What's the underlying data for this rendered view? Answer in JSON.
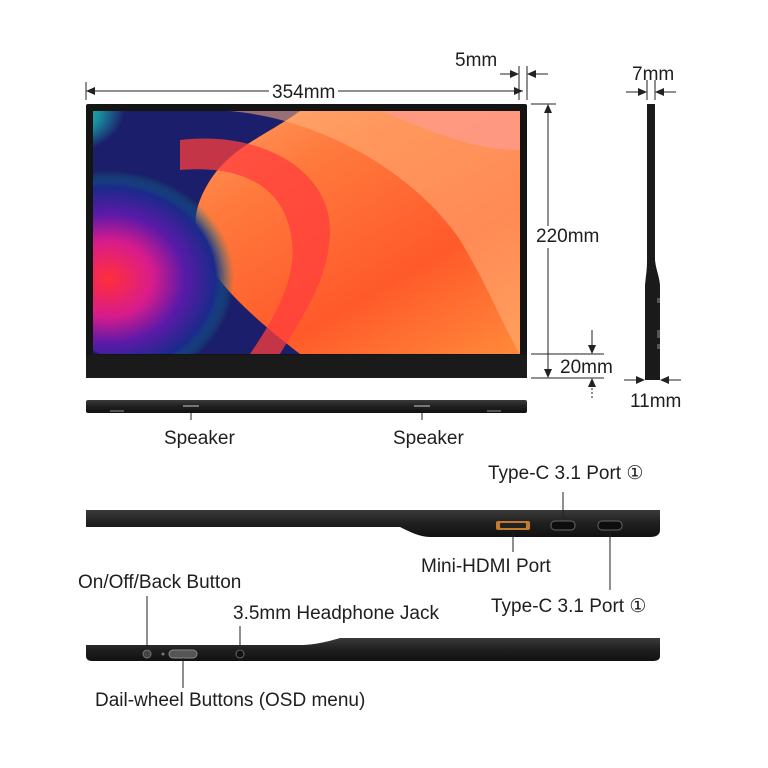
{
  "dimensions": {
    "width": "354mm",
    "height": "220mm",
    "bezel_side": "5mm",
    "bezel_bottom": "20mm",
    "thickness_top": "7mm",
    "thickness_bottom": "11mm"
  },
  "bottom_view": {
    "speaker_left": "Speaker",
    "speaker_right": "Speaker"
  },
  "right_side_view": {
    "type_c_top": "Type-C 3.1 Port ①",
    "mini_hdmi": "Mini-HDMI Port",
    "type_c_bottom": "Type-C 3.1 Port ①"
  },
  "left_side_view": {
    "power_button": "On/Off/Back Button",
    "headphone_jack": "3.5mm Headphone Jack",
    "dial_wheel": "Dail-wheel Buttons (OSD menu)"
  },
  "colors": {
    "device_body": "#1c1c1c",
    "bezel": "#121212",
    "hdmi_port_accent": "#c47a2c"
  }
}
